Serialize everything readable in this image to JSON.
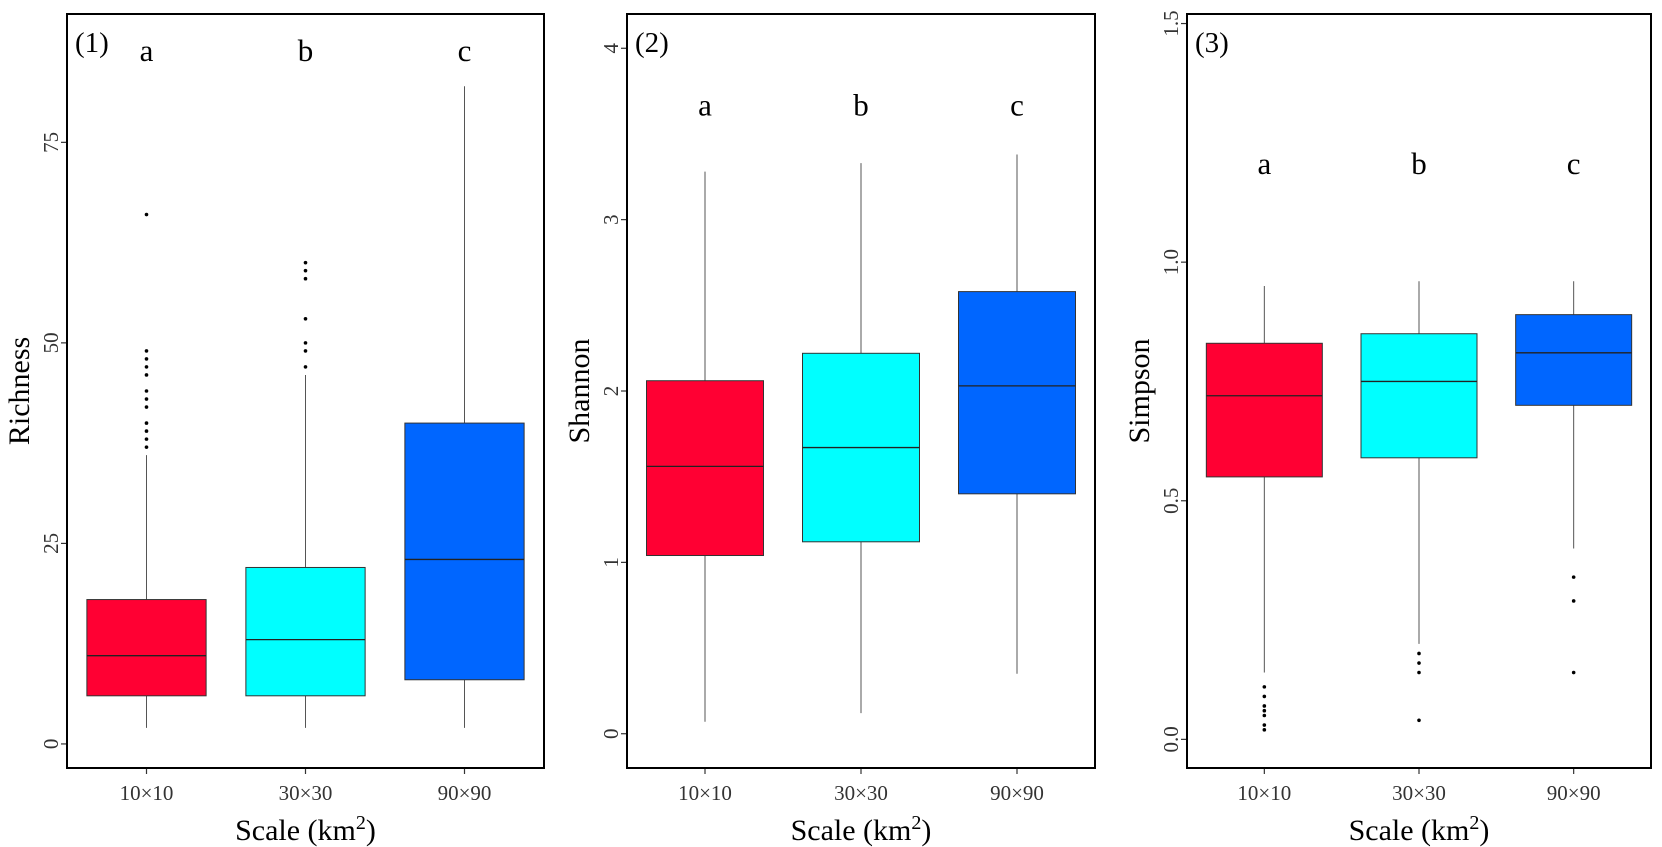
{
  "chart_data": [
    {
      "type": "boxplot",
      "title": "(1)",
      "xlabel": "Scale (km",
      "xlabel_sup": "2",
      "xlabel_close": ")",
      "ylabel": "Richness",
      "categories": [
        "10×10",
        "30×30",
        "90×90"
      ],
      "colors": [
        "#ff0033",
        "#00ffff",
        "#0066ff"
      ],
      "ylim": [
        -3,
        91
      ],
      "yticks": [
        0,
        25,
        50,
        75
      ],
      "letters": [
        "a",
        "b",
        "c"
      ],
      "letter_value": 86,
      "boxes": [
        {
          "lower": 2,
          "q1": 6,
          "median": 11,
          "q3": 18,
          "upper": 36,
          "outliers": [
            37,
            38,
            39,
            40,
            42,
            43,
            44,
            46,
            47,
            48,
            49,
            66
          ]
        },
        {
          "lower": 2,
          "q1": 6,
          "median": 13,
          "q3": 22,
          "upper": 46,
          "outliers": [
            47,
            49,
            50,
            53,
            58,
            59,
            60
          ]
        },
        {
          "lower": 2,
          "q1": 8,
          "median": 23,
          "q3": 40,
          "upper": 82,
          "outliers": []
        }
      ]
    },
    {
      "type": "boxplot",
      "title": "(2)",
      "xlabel": "Scale (km",
      "xlabel_sup": "2",
      "xlabel_close": ")",
      "ylabel": "Shannon",
      "categories": [
        "10×10",
        "30×30",
        "90×90"
      ],
      "colors": [
        "#ff0033",
        "#00ffff",
        "#0066ff"
      ],
      "ylim": [
        -0.2,
        4.2
      ],
      "yticks": [
        0,
        1,
        2,
        3,
        4
      ],
      "letters": [
        "a",
        "b",
        "c"
      ],
      "letter_value": 3.65,
      "boxes": [
        {
          "lower": 0.07,
          "q1": 1.04,
          "median": 1.56,
          "q3": 2.06,
          "upper": 3.28,
          "outliers": []
        },
        {
          "lower": 0.12,
          "q1": 1.12,
          "median": 1.67,
          "q3": 2.22,
          "upper": 3.33,
          "outliers": []
        },
        {
          "lower": 0.35,
          "q1": 1.4,
          "median": 2.03,
          "q3": 2.58,
          "upper": 3.38,
          "outliers": []
        }
      ]
    },
    {
      "type": "boxplot",
      "title": "(3)",
      "xlabel": "Scale (km",
      "xlabel_sup": "2",
      "xlabel_close": ")",
      "ylabel": "Simpson",
      "categories": [
        "10×10",
        "30×30",
        "90×90"
      ],
      "colors": [
        "#ff0033",
        "#00ffff",
        "#0066ff"
      ],
      "ylim": [
        -0.06,
        1.52
      ],
      "yticks": [
        0.0,
        0.5,
        1.0,
        1.5
      ],
      "ytick_labels": [
        "0.0",
        "0.5",
        "1.0",
        "1.5"
      ],
      "letters": [
        "a",
        "b",
        "c"
      ],
      "letter_value": 1.2,
      "boxes": [
        {
          "lower": 0.14,
          "q1": 0.55,
          "median": 0.72,
          "q3": 0.83,
          "upper": 0.95,
          "outliers": [
            0.02,
            0.03,
            0.05,
            0.06,
            0.07,
            0.09,
            0.11
          ]
        },
        {
          "lower": 0.2,
          "q1": 0.59,
          "median": 0.75,
          "q3": 0.85,
          "upper": 0.96,
          "outliers": [
            0.04,
            0.14,
            0.16,
            0.18
          ]
        },
        {
          "lower": 0.4,
          "q1": 0.7,
          "median": 0.81,
          "q3": 0.89,
          "upper": 0.96,
          "outliers": [
            0.14,
            0.29,
            0.34
          ]
        }
      ]
    }
  ]
}
